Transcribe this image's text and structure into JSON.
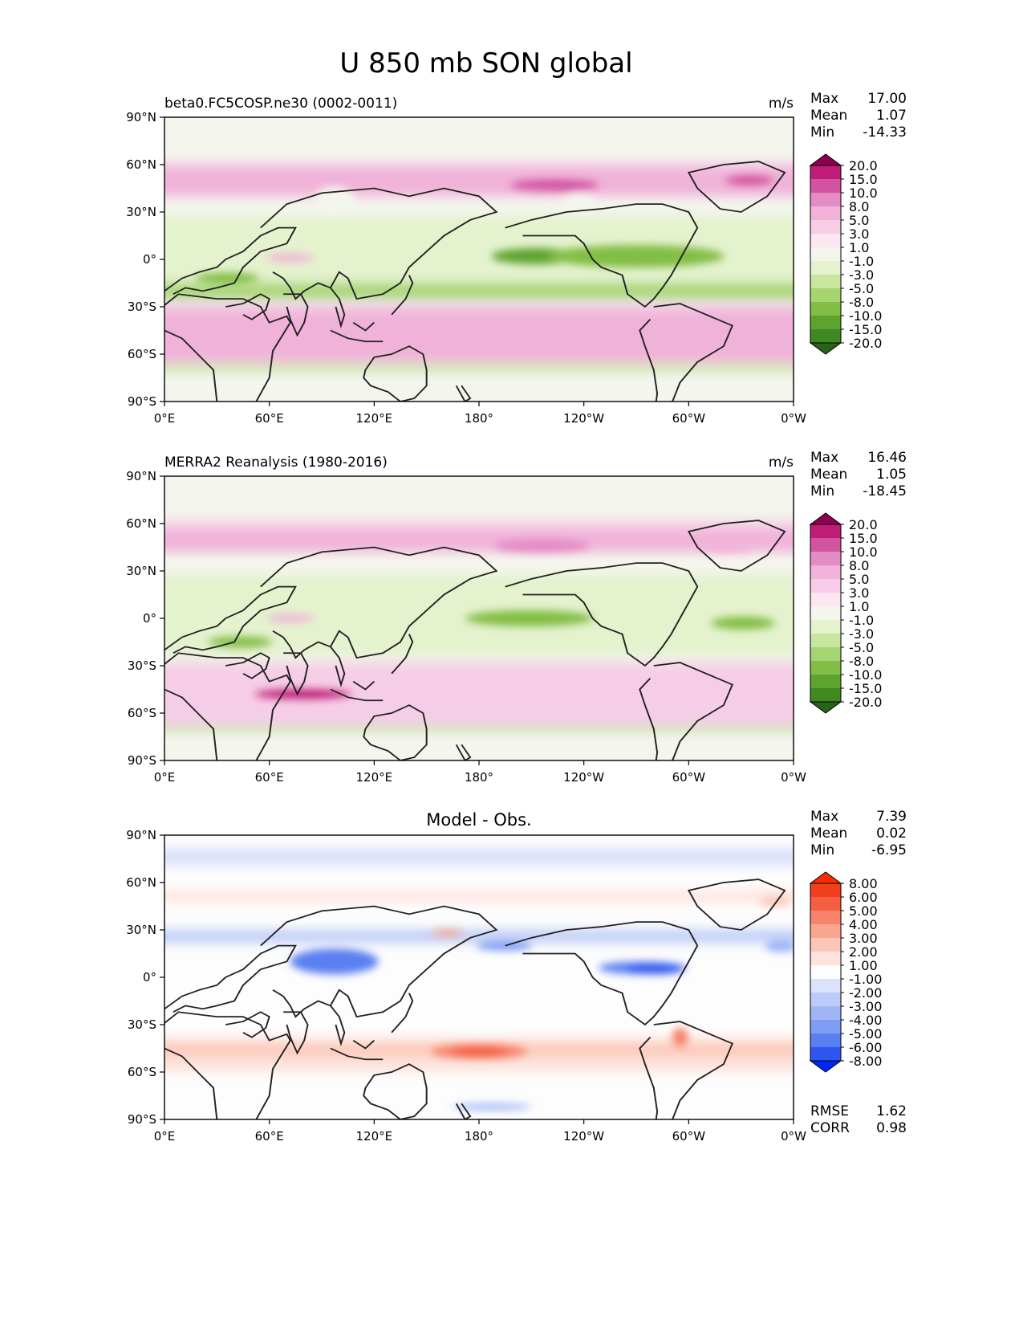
{
  "figure": {
    "title": "U 850 mb SON global"
  },
  "map_axes": {
    "lat_labels": [
      "90°N",
      "60°N",
      "30°N",
      "0°",
      "30°S",
      "60°S",
      "90°S"
    ],
    "lon_labels": [
      "0°E",
      "60°E",
      "120°E",
      "180°",
      "120°W",
      "60°W",
      "0°W"
    ]
  },
  "colors": {
    "u_palette": [
      "#276419",
      "#3e8a21",
      "#5ea32e",
      "#82bd45",
      "#a6d470",
      "#c8e6a0",
      "#e4f2ce",
      "#f4f6ee",
      "#fbe6f2",
      "#f6cde6",
      "#f0b2d8",
      "#e38bc4",
      "#d2539f",
      "#bf1c77",
      "#8e0152"
    ],
    "diff_palette": [
      "#0026ff",
      "#2f57f0",
      "#5a7ff0",
      "#7d9cf3",
      "#9fb5f6",
      "#bccbf7",
      "#dbe3fb",
      "#fdfdfd",
      "#fde3dc",
      "#fcc7b8",
      "#f9a68f",
      "#f7836a",
      "#f45f42",
      "#f2401e",
      "#ff2a00"
    ]
  },
  "panels": [
    {
      "id": "model",
      "center_title": "",
      "left_title": "beta0.FC5COSP.ne30 (0002-0011)",
      "units": "m/s",
      "stats": [
        {
          "label": "Max",
          "value": "17.00"
        },
        {
          "label": "Mean",
          "value": "1.07"
        },
        {
          "label": "Min",
          "value": "-14.33"
        }
      ],
      "colorbar_labels": [
        "20.0",
        "15.0",
        "10.0",
        "8.0",
        "5.0",
        "3.0",
        "1.0",
        "-1.0",
        "-3.0",
        "-5.0",
        "-8.0",
        "-10.0",
        "-15.0",
        "-20.0"
      ],
      "bottom_stats": []
    },
    {
      "id": "obs",
      "center_title": "",
      "left_title": "MERRA2 Reanalysis (1980-2016)",
      "units": "m/s",
      "stats": [
        {
          "label": "Max",
          "value": "16.46"
        },
        {
          "label": "Mean",
          "value": "1.05"
        },
        {
          "label": "Min",
          "value": "-18.45"
        }
      ],
      "colorbar_labels": [
        "20.0",
        "15.0",
        "10.0",
        "8.0",
        "5.0",
        "3.0",
        "1.0",
        "-1.0",
        "-3.0",
        "-5.0",
        "-8.0",
        "-10.0",
        "-15.0",
        "-20.0"
      ],
      "bottom_stats": []
    },
    {
      "id": "diff",
      "center_title": "Model - Obs.",
      "left_title": "",
      "units": "",
      "stats": [
        {
          "label": "Max",
          "value": "7.39"
        },
        {
          "label": "Mean",
          "value": "0.02"
        },
        {
          "label": "Min",
          "value": "-6.95"
        }
      ],
      "colorbar_labels": [
        "8.00",
        "6.00",
        "5.00",
        "4.00",
        "3.00",
        "2.00",
        "1.00",
        "-1.00",
        "-2.00",
        "-3.00",
        "-4.00",
        "-5.00",
        "-6.00",
        "-8.00"
      ],
      "bottom_stats": [
        {
          "label": "RMSE",
          "value": "1.62"
        },
        {
          "label": "CORR",
          "value": "0.98"
        }
      ]
    }
  ]
}
